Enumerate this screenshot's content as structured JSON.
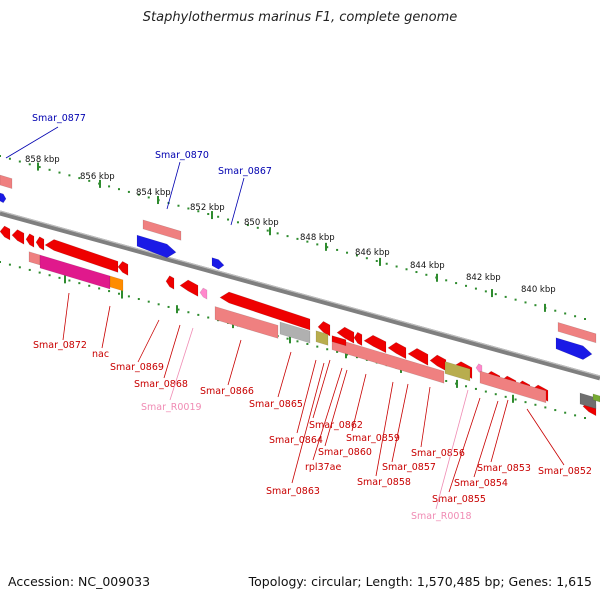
{
  "title": "Staphylothermus marinus F1, complete genome",
  "footer": {
    "accession": "Accession: NC_009033",
    "summary": "Topology: circular; Length: 1,570,485 bp; Genes: 1,615"
  },
  "colors": {
    "backbone": "#7f7f7f",
    "tick": "#2e8b2e",
    "gene_red": "#ee0000",
    "gene_salmon": "#ef8080",
    "gene_blue": "#1a1ae6",
    "gene_magenta": "#e0198c",
    "gene_orange": "#ff8c00",
    "gene_gray": "#b0b0b0",
    "gene_olive": "#b8ad4e",
    "label_red": "#c80000",
    "label_blue": "#0000b0",
    "label_pink": "#f08cb4"
  },
  "ruler_labels": [
    "858 kbp",
    "856 kbp",
    "854 kbp",
    "852 kbp",
    "850 kbp",
    "848 kbp",
    "846 kbp",
    "844 kbp",
    "842 kbp",
    "840 kbp"
  ],
  "top_labels": [
    "Smar_0877",
    "Smar_0870",
    "Smar_0867"
  ],
  "bottom_labels": [
    "Smar_0872",
    "nac",
    "Smar_0869",
    "Smar_0868",
    "Smar_R0019",
    "Smar_0866",
    "Smar_0865",
    "Smar_0864",
    "Smar_0862",
    "Smar_0863",
    "Smar_0860",
    "rpl37ae",
    "Smar_0859",
    "Smar_0858",
    "Smar_0857",
    "Smar_0856",
    "Smar_0855",
    "Smar_R0018",
    "Smar_0854",
    "Smar_0853",
    "Smar_0852"
  ]
}
